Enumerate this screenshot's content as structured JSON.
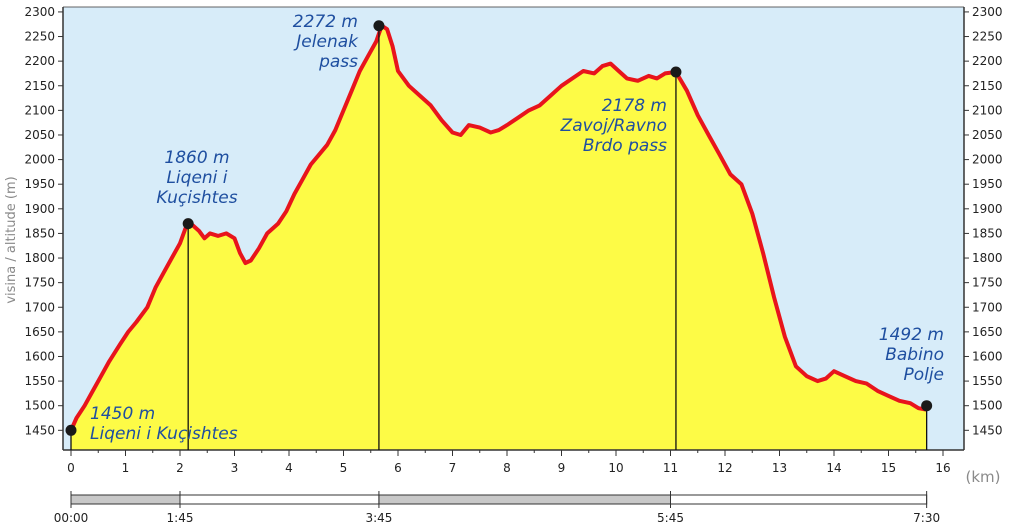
{
  "chart_data": {
    "type": "area",
    "ylabel": "visina / altitude (m)",
    "xunit": "(km)",
    "xlim": [
      0,
      16
    ],
    "ylim": [
      1410,
      2310
    ],
    "y_ticks": [
      1450,
      1500,
      1550,
      1600,
      1650,
      1700,
      1750,
      1800,
      1850,
      1900,
      1950,
      2000,
      2050,
      2100,
      2150,
      2200,
      2250,
      2300
    ],
    "x_ticks": [
      0,
      1,
      2,
      3,
      4,
      5,
      6,
      7,
      8,
      9,
      10,
      11,
      12,
      13,
      14,
      15,
      16
    ],
    "grid": false,
    "colors": {
      "plot_bg": "#d7ecf9",
      "fill": "#fdfb46",
      "line": "#e8141c",
      "annotation": "#1f4fa0",
      "marker": "#1a1a1a"
    },
    "series": [
      {
        "x": [
          0,
          0.1,
          0.25,
          0.4,
          0.55,
          0.7,
          0.9,
          1.05,
          1.2,
          1.4,
          1.55,
          1.7,
          1.85,
          2.0,
          2.1,
          2.2,
          2.35,
          2.45,
          2.55,
          2.7,
          2.85,
          3.0,
          3.1,
          3.2,
          3.3,
          3.45,
          3.6,
          3.8,
          3.95,
          4.1,
          4.25,
          4.4,
          4.55,
          4.7,
          4.85,
          5.0,
          5.15,
          5.3,
          5.45,
          5.6,
          5.7,
          5.8,
          5.9,
          6.0,
          6.2,
          6.4,
          6.6,
          6.8,
          7.0,
          7.15,
          7.3,
          7.5,
          7.7,
          7.85,
          8.0,
          8.2,
          8.4,
          8.6,
          8.8,
          9.0,
          9.2,
          9.4,
          9.6,
          9.75,
          9.9,
          10.05,
          10.2,
          10.4,
          10.6,
          10.75,
          10.9,
          11.1,
          11.3,
          11.5,
          11.7,
          11.9,
          12.1,
          12.3,
          12.5,
          12.7,
          12.9,
          13.1,
          13.3,
          13.5,
          13.7,
          13.85,
          14.0,
          14.2,
          14.4,
          14.6,
          14.8,
          15.0,
          15.2,
          15.4,
          15.55,
          15.7
        ],
        "values": [
          1450,
          1475,
          1500,
          1530,
          1560,
          1590,
          1625,
          1650,
          1670,
          1700,
          1740,
          1770,
          1800,
          1830,
          1860,
          1870,
          1855,
          1840,
          1850,
          1845,
          1850,
          1840,
          1810,
          1790,
          1795,
          1820,
          1850,
          1870,
          1895,
          1930,
          1960,
          1990,
          2010,
          2030,
          2060,
          2100,
          2140,
          2180,
          2210,
          2240,
          2272,
          2265,
          2230,
          2180,
          2150,
          2130,
          2110,
          2080,
          2055,
          2050,
          2070,
          2065,
          2055,
          2060,
          2070,
          2085,
          2100,
          2110,
          2130,
          2150,
          2165,
          2180,
          2175,
          2190,
          2195,
          2180,
          2165,
          2160,
          2170,
          2165,
          2175,
          2178,
          2140,
          2090,
          2050,
          2010,
          1970,
          1950,
          1890,
          1810,
          1720,
          1640,
          1580,
          1560,
          1550,
          1555,
          1570,
          1560,
          1550,
          1545,
          1530,
          1520,
          1510,
          1505,
          1495,
          1492
        ]
      }
    ],
    "waypoints": [
      {
        "x": 0,
        "y": 1450,
        "label_lines": [
          "1450 m",
          "Liqeni i Kuçishtes"
        ]
      },
      {
        "x": 2.15,
        "y": 1870,
        "label_lines": [
          "1860 m",
          "Liqeni i",
          "Kuçishtes"
        ]
      },
      {
        "x": 5.65,
        "y": 2272,
        "label_lines": [
          "2272 m",
          "Jelenak",
          "pass"
        ]
      },
      {
        "x": 11.1,
        "y": 2178,
        "label_lines": [
          "2178 m",
          "Zavoj/Ravno",
          "Brdo pass"
        ]
      },
      {
        "x": 15.7,
        "y": 1500,
        "label_lines": [
          "1492 m",
          "Babino",
          "Polje"
        ]
      }
    ],
    "time_axis": {
      "labels": [
        {
          "x": 0,
          "text": "00:00"
        },
        {
          "x": 2,
          "text": "1:45"
        },
        {
          "x": 5.65,
          "text": "3:45"
        },
        {
          "x": 11,
          "text": "5:45"
        },
        {
          "x": 15.7,
          "text": "7:30"
        }
      ],
      "shaded_segments": [
        [
          0,
          2
        ],
        [
          5.65,
          11
        ]
      ]
    }
  }
}
